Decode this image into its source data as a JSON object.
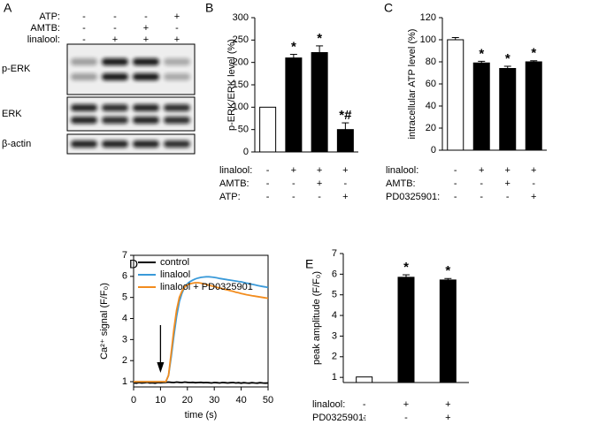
{
  "blot": {
    "panel_label": "A",
    "conditions": [
      {
        "name": "ATP:",
        "signs": [
          "-",
          "-",
          "-",
          "+"
        ]
      },
      {
        "name": "AMTB:",
        "signs": [
          "-",
          "-",
          "+",
          "-"
        ]
      },
      {
        "name": "linalool:",
        "signs": [
          "-",
          "+",
          "+",
          "+"
        ]
      }
    ],
    "bands": [
      "p-ERK",
      "ERK",
      "β-actin"
    ]
  },
  "chart_data": [
    {
      "type": "bar",
      "panel_label": "B",
      "ylabel": "p-ERK/ERK level (%)",
      "categories": [
        null,
        null,
        null,
        null
      ],
      "values": [
        100,
        210,
        222,
        50
      ],
      "errors": [
        null,
        8,
        15,
        15
      ],
      "colors": [
        "#ffffff",
        "#000000",
        "#000000",
        "#000000"
      ],
      "annotations": [
        null,
        "*",
        "*",
        "*#"
      ],
      "ylim": [
        0,
        300
      ],
      "yticks": [
        0,
        50,
        100,
        150,
        200,
        250,
        300
      ],
      "conditions": [
        {
          "name": "linalool:",
          "signs": [
            "-",
            "+",
            "+",
            "+"
          ]
        },
        {
          "name": "AMTB:",
          "signs": [
            "-",
            "-",
            "+",
            "-"
          ]
        },
        {
          "name": "ATP:",
          "signs": [
            "-",
            "-",
            "-",
            "+"
          ]
        }
      ]
    },
    {
      "type": "bar",
      "panel_label": "C",
      "ylabel": "intracellular ATP level (%)",
      "categories": [
        null,
        null,
        null,
        null
      ],
      "values": [
        100,
        79,
        74,
        80
      ],
      "errors": [
        2,
        1.5,
        2,
        1
      ],
      "colors": [
        "#ffffff",
        "#000000",
        "#000000",
        "#000000"
      ],
      "annotations": [
        null,
        "*",
        "*",
        "*"
      ],
      "ylim": [
        0,
        120
      ],
      "yticks": [
        0,
        20,
        40,
        60,
        80,
        100,
        120
      ],
      "conditions": [
        {
          "name": "linalool:",
          "signs": [
            "-",
            "+",
            "+",
            "+"
          ]
        },
        {
          "name": "AMTB:",
          "signs": [
            "-",
            "-",
            "+",
            "-"
          ]
        },
        {
          "name": "PD0325901:",
          "signs": [
            "-",
            "-",
            "-",
            "+"
          ]
        }
      ]
    },
    {
      "type": "line",
      "panel_label": "D",
      "xlabel": "time (s)",
      "ylabel": "Ca²⁺ signal (F/F₀)",
      "x": [
        0,
        1,
        2,
        3,
        4,
        5,
        6,
        7,
        8,
        9,
        10,
        11,
        12,
        13,
        14,
        15,
        16,
        17,
        18,
        19,
        20,
        21,
        22,
        23,
        24,
        25,
        26,
        27,
        28,
        29,
        30,
        31,
        32,
        33,
        34,
        35,
        36,
        37,
        38,
        39,
        40,
        41,
        42,
        43,
        44,
        45,
        46,
        47,
        48,
        49,
        50
      ],
      "series": [
        {
          "name": "control",
          "color": "#000000",
          "values": [
            0.95,
            0.93,
            0.96,
            0.94,
            0.95,
            0.97,
            0.94,
            0.95,
            0.93,
            0.96,
            0.95,
            0.96,
            0.97,
            0.98,
            0.97,
            0.96,
            0.98,
            0.97,
            0.96,
            0.98,
            0.97,
            0.96,
            0.97,
            0.95,
            0.96,
            0.97,
            0.95,
            0.96,
            0.95,
            0.94,
            0.96,
            0.95,
            0.94,
            0.96,
            0.95,
            0.94,
            0.95,
            0.96,
            0.94,
            0.95,
            0.93,
            0.95,
            0.94,
            0.93,
            0.95,
            0.94,
            0.93,
            0.95,
            0.94,
            0.93,
            0.94
          ]
        },
        {
          "name": "linalool",
          "color": "#3a9ad9",
          "values": [
            1.0,
            1.0,
            1.0,
            1.0,
            1.0,
            1.0,
            1.0,
            1.0,
            1.0,
            1.0,
            1.0,
            1.0,
            1.0,
            1.3,
            2.2,
            3.2,
            4.1,
            4.8,
            5.2,
            5.5,
            5.65,
            5.75,
            5.82,
            5.88,
            5.92,
            5.95,
            5.97,
            5.98,
            5.98,
            5.97,
            5.95,
            5.93,
            5.9,
            5.88,
            5.86,
            5.84,
            5.82,
            5.8,
            5.78,
            5.76,
            5.74,
            5.71,
            5.68,
            5.66,
            5.63,
            5.6,
            5.57,
            5.54,
            5.52,
            5.5,
            5.47
          ]
        },
        {
          "name": "linalool + PD0325901",
          "color": "#f28c1e",
          "values": [
            1.0,
            1.0,
            1.0,
            1.0,
            1.0,
            1.0,
            1.0,
            1.0,
            1.0,
            1.0,
            1.0,
            1.0,
            1.0,
            1.3,
            2.4,
            3.5,
            4.4,
            5.0,
            5.3,
            5.5,
            5.6,
            5.65,
            5.68,
            5.7,
            5.7,
            5.68,
            5.65,
            5.62,
            5.58,
            5.55,
            5.52,
            5.48,
            5.45,
            5.42,
            5.38,
            5.35,
            5.32,
            5.29,
            5.25,
            5.22,
            5.19,
            5.16,
            5.13,
            5.11,
            5.08,
            5.06,
            5.04,
            5.02,
            5.0,
            4.98,
            4.96
          ]
        }
      ],
      "xlim": [
        0,
        50
      ],
      "xticks": [
        0,
        10,
        20,
        30,
        40,
        50
      ],
      "ylim": [
        0.75,
        7
      ],
      "yticks": [
        1,
        2,
        3,
        4,
        5,
        6,
        7
      ],
      "legend": "upper left"
    },
    {
      "type": "bar",
      "panel_label": "E",
      "ylabel": "peak amplitude (F/F₀)",
      "categories": [
        null,
        null,
        null
      ],
      "values": [
        1.02,
        5.85,
        5.72
      ],
      "errors": [
        null,
        0.12,
        0.07
      ],
      "colors": [
        "#ffffff",
        "#000000",
        "#000000"
      ],
      "annotations": [
        null,
        "*",
        "*"
      ],
      "ylim": [
        0.75,
        7
      ],
      "yticks": [
        1,
        2,
        3,
        4,
        5,
        6,
        7
      ],
      "conditions": [
        {
          "name": "linalool:",
          "signs": [
            "-",
            "+",
            "+"
          ]
        },
        {
          "name": "PD0325901:",
          "signs": [
            "-",
            "-",
            "+"
          ]
        }
      ]
    }
  ]
}
